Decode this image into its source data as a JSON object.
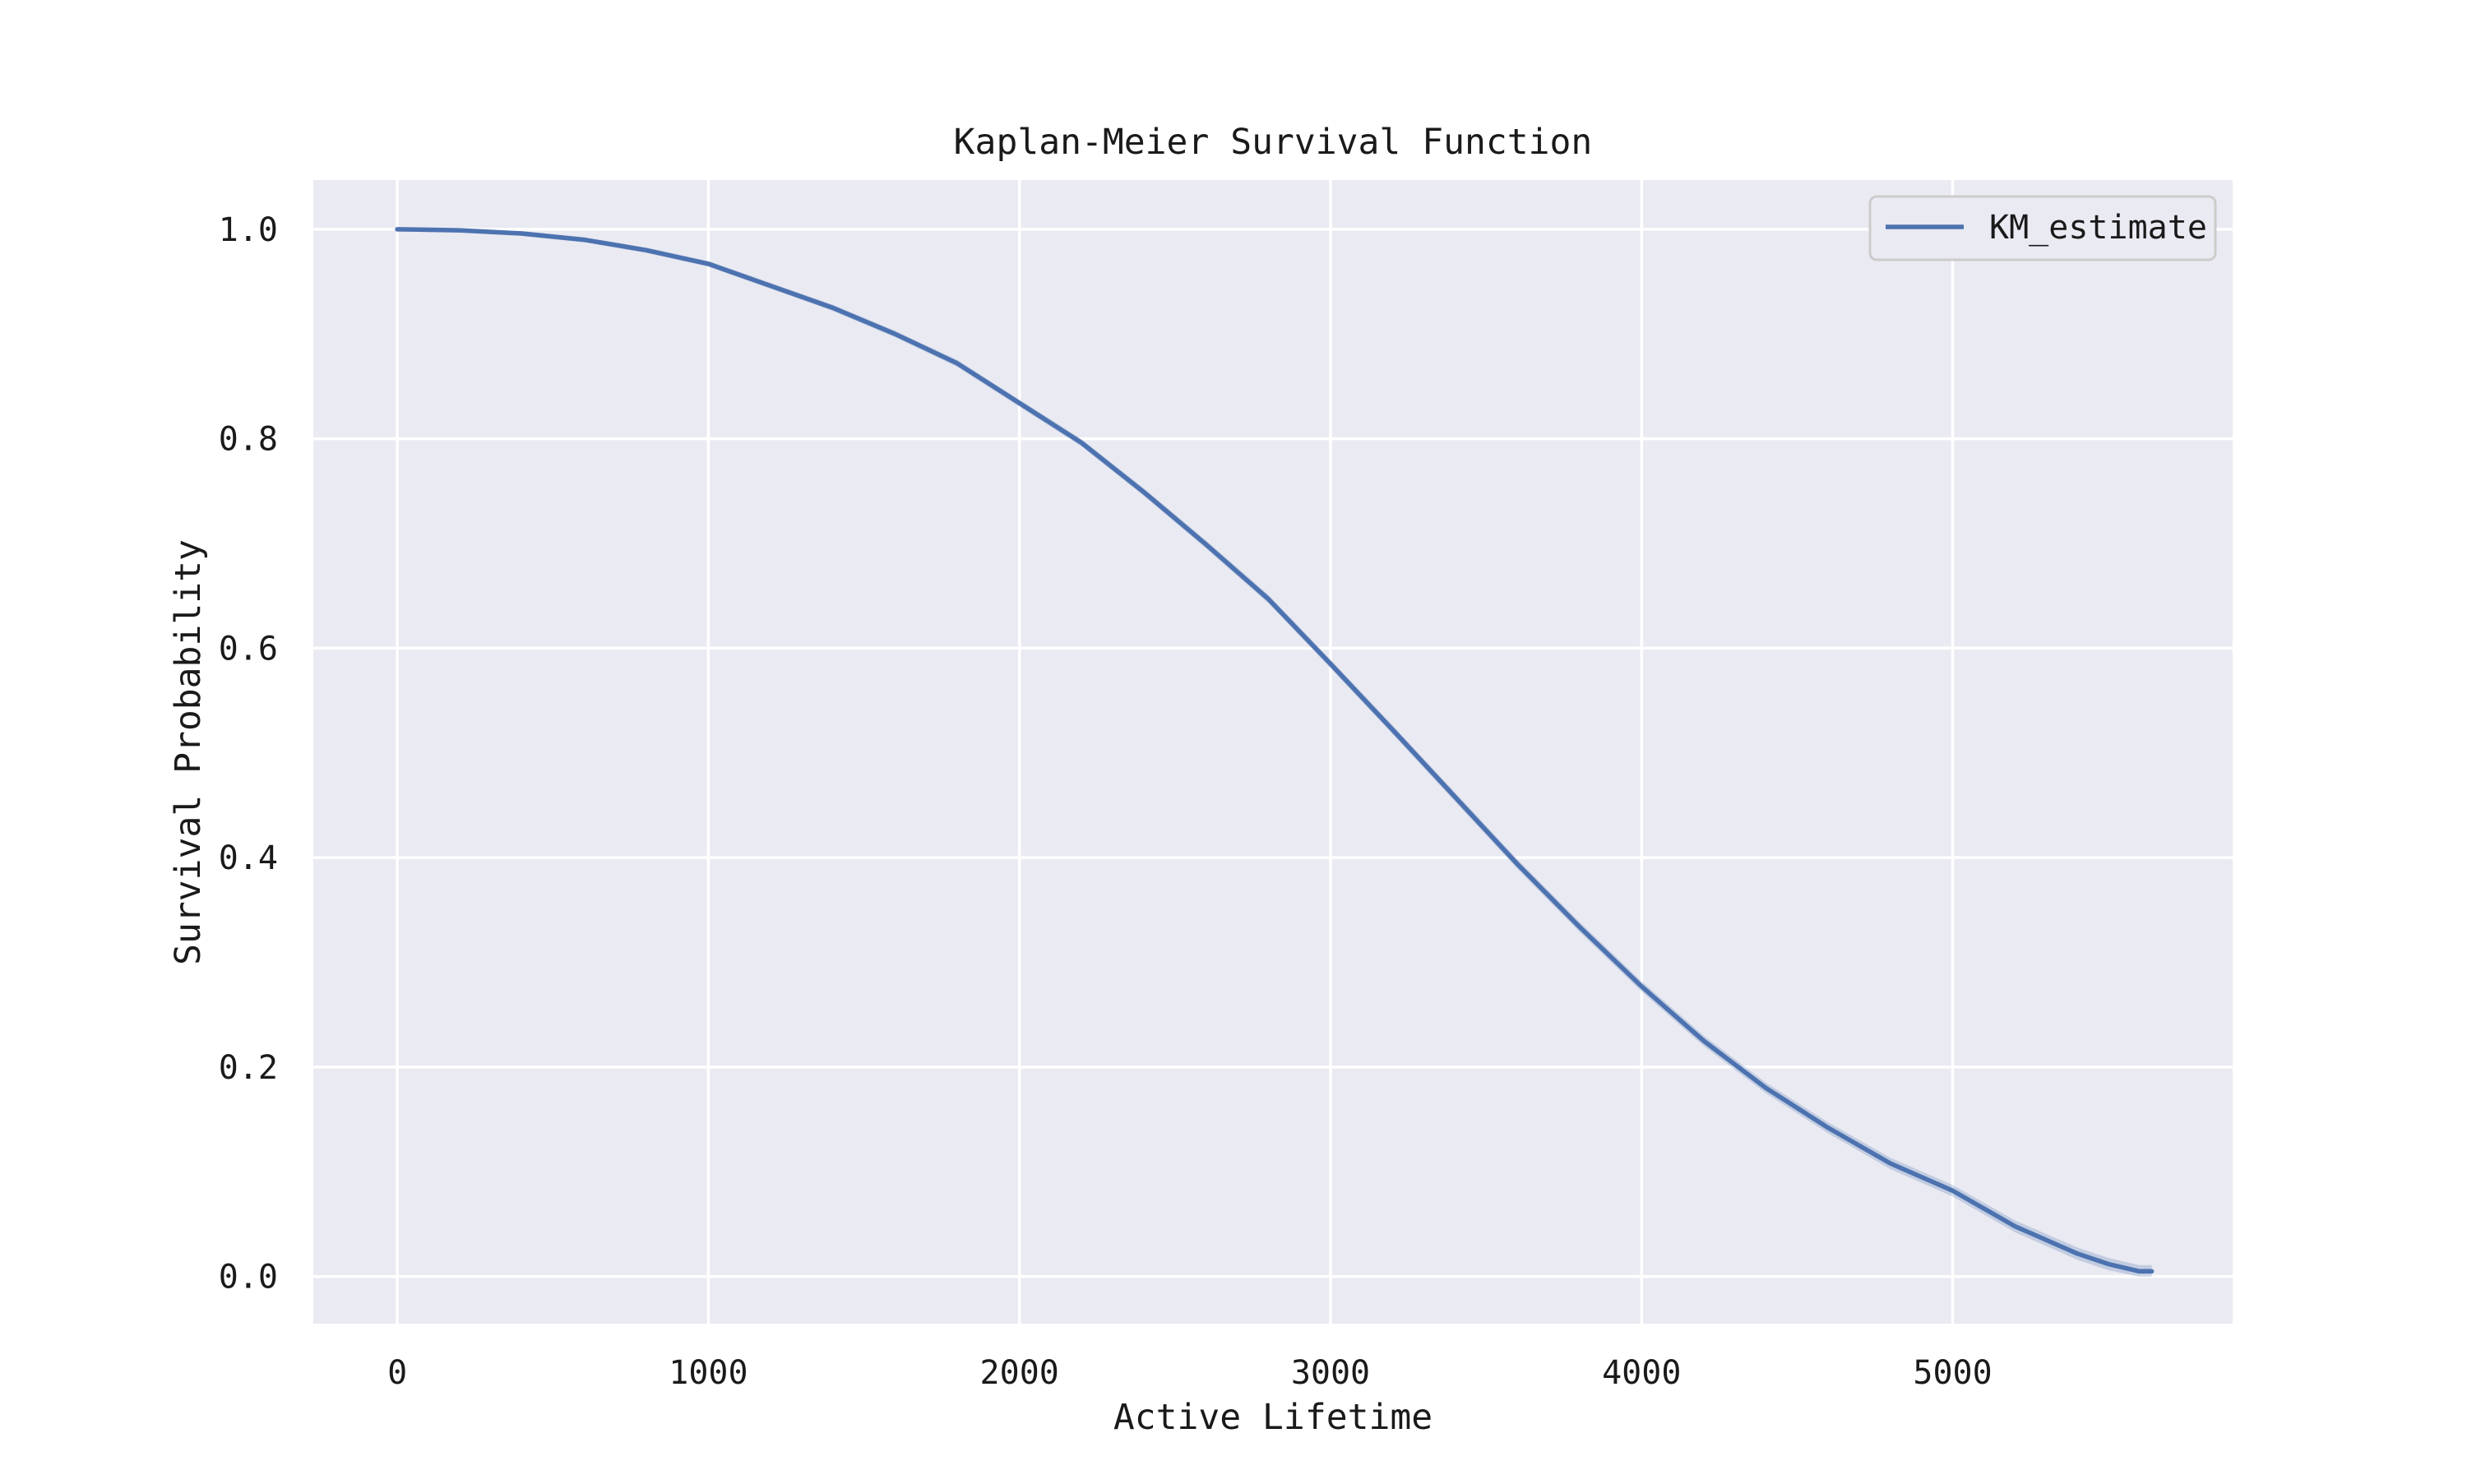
{
  "chart_data": {
    "type": "line",
    "title": "Kaplan-Meier Survival Function",
    "xlabel": "Active Lifetime",
    "ylabel": "Survival Probability",
    "xlim": [
      -270,
      5900
    ],
    "ylim": [
      -0.045,
      1.047
    ],
    "xticks": [
      0,
      1000,
      2000,
      3000,
      4000,
      5000
    ],
    "xtick_labels": [
      "0",
      "1000",
      "2000",
      "3000",
      "4000",
      "5000"
    ],
    "yticks": [
      0.0,
      0.2,
      0.4,
      0.6,
      0.8,
      1.0
    ],
    "ytick_labels": [
      "0.0",
      "0.2",
      "0.4",
      "0.6",
      "0.8",
      "1.0"
    ],
    "grid": true,
    "legend_position": "top-right",
    "series": [
      {
        "name": "KM_estimate",
        "color": "#4c72b0",
        "x": [
          0,
          200,
          400,
          600,
          800,
          1000,
          1200,
          1400,
          1600,
          1800,
          2000,
          2200,
          2400,
          2600,
          2800,
          3000,
          3200,
          3400,
          3600,
          3800,
          4000,
          4200,
          4400,
          4600,
          4800,
          5000,
          5200,
          5400,
          5500,
          5600,
          5640
        ],
        "y": [
          1.0,
          0.999,
          0.996,
          0.99,
          0.98,
          0.967,
          0.946,
          0.925,
          0.9,
          0.872,
          0.834,
          0.796,
          0.749,
          0.699,
          0.647,
          0.585,
          0.522,
          0.458,
          0.394,
          0.334,
          0.277,
          0.225,
          0.18,
          0.142,
          0.108,
          0.082,
          0.048,
          0.022,
          0.012,
          0.005,
          0.005
        ]
      }
    ]
  }
}
